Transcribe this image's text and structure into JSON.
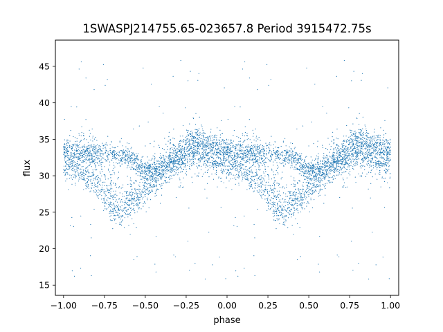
{
  "chart_data": {
    "type": "scatter",
    "title": "1SWASPJ214755.65-023657.8 Period 3915472.75s",
    "xlabel": "phase",
    "ylabel": "flux",
    "xlim": [
      -1.05,
      1.05
    ],
    "ylim": [
      13.6,
      48.6
    ],
    "xticks": [
      -1.0,
      -0.75,
      -0.5,
      -0.25,
      0.0,
      0.25,
      0.5,
      0.75,
      1.0
    ],
    "xtick_labels": [
      "−1.00",
      "−0.75",
      "−0.50",
      "−0.25",
      "0.00",
      "0.25",
      "0.50",
      "0.75",
      "1.00"
    ],
    "yticks": [
      15,
      20,
      25,
      30,
      35,
      40,
      45
    ],
    "ytick_labels": [
      "15",
      "20",
      "25",
      "30",
      "35",
      "40",
      "45"
    ],
    "grid": false,
    "legend": "none",
    "marker_color": "#1f77b4",
    "series": [
      {
        "description": "phase-folded light curve, one cycle shown twice (phase -1..0 repeated at 0..1)",
        "trend": {
          "phase": [
            0.0,
            0.05,
            0.1,
            0.15,
            0.2,
            0.25,
            0.3,
            0.35,
            0.4,
            0.45,
            0.5,
            0.55,
            0.6,
            0.65,
            0.7,
            0.75,
            0.8,
            0.85,
            0.9,
            0.95,
            1.0
          ],
          "flux": [
            32.5,
            32.8,
            32.6,
            32.5,
            32.2,
            29.5,
            27.5,
            26.8,
            27.5,
            28.5,
            29.5,
            30.5,
            31.5,
            32.5,
            33.0,
            33.5,
            33.8,
            33.5,
            33.0,
            32.8,
            32.5
          ]
        },
        "upper_branch": {
          "phase": [
            0.0,
            0.1,
            0.2,
            0.3,
            0.4,
            0.5,
            0.6,
            0.7,
            0.8,
            0.9,
            1.0
          ],
          "flux": [
            33.5,
            33.0,
            33.2,
            33.0,
            32.5,
            30.5,
            31.0,
            33.0,
            35.0,
            34.5,
            33.5
          ]
        },
        "lower_branch": {
          "phase": [
            0.0,
            0.1,
            0.2,
            0.25,
            0.3,
            0.35,
            0.4,
            0.45,
            0.5,
            0.6,
            0.7,
            0.8,
            0.9,
            1.0
          ],
          "flux": [
            31.5,
            30.5,
            29.0,
            27.0,
            25.5,
            24.8,
            25.5,
            26.5,
            28.0,
            30.0,
            31.5,
            33.0,
            32.0,
            31.5
          ]
        },
        "spread_flux": 1.3,
        "outlier_range": [
          15.5,
          46.0
        ],
        "points_per_cycle": 3200,
        "seed": 21475565
      }
    ]
  }
}
